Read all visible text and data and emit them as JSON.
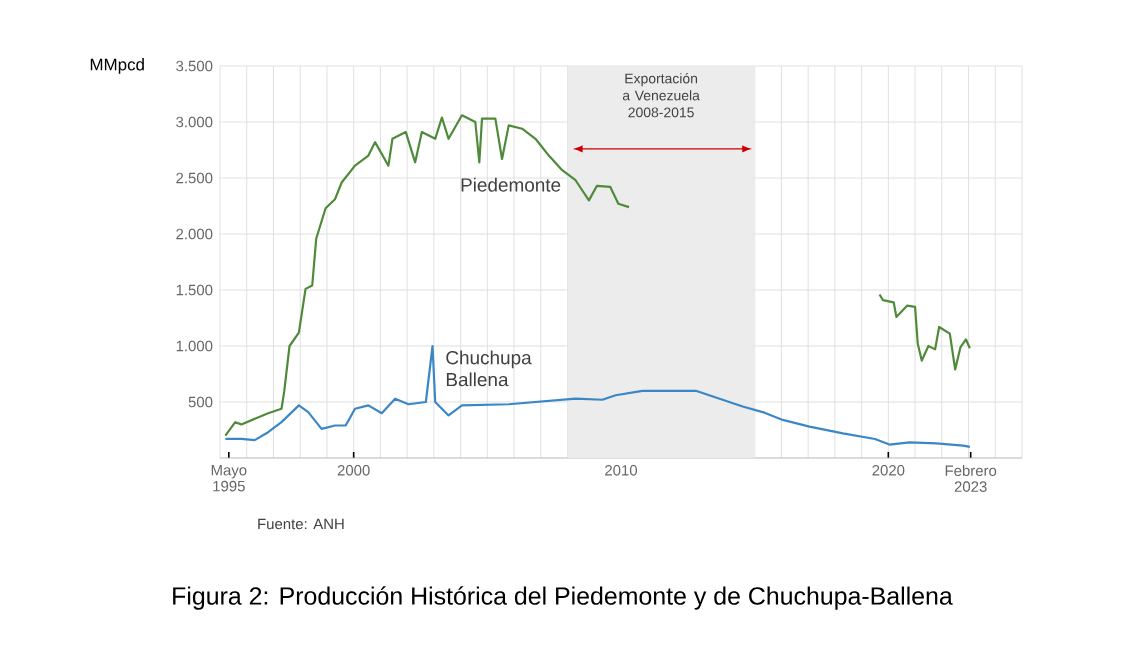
{
  "chart_data": {
    "type": "line",
    "title": "Figura 2: Producción Histórica del Piedemonte y de Chuchupa-Ballena",
    "ylabel": "MMpcd",
    "annotations": [
      "Fuente: ANH"
    ],
    "xlim": [
      1995,
      2025
    ],
    "ylim": [
      0,
      3500
    ],
    "xticks": [
      {
        "value": 1995.33,
        "label": "Mayo 1995"
      },
      2000,
      2010,
      2020,
      {
        "value": 2023.08,
        "label": "Febrero 2023"
      }
    ],
    "yticks": [
      500,
      {
        "value": 1000,
        "label": "1.000"
      },
      {
        "value": 1500,
        "label": "1.500"
      },
      {
        "value": 2000,
        "label": "2.000"
      },
      {
        "value": 2500,
        "label": "2.500"
      },
      {
        "value": 3000,
        "label": "3.000"
      },
      {
        "value": 3500,
        "label": "3.500"
      }
    ],
    "grid": true,
    "legend": false,
    "bands": [
      {
        "axis": "x",
        "from": 2008,
        "to": 2015,
        "label": "Exportación a Venezuela 2008-2015",
        "color": "#ececec"
      }
    ],
    "series": [
      {
        "name": "Piedemonte",
        "color": "#4f8a3a",
        "x": [
          1995.2,
          1995.57,
          1995.8,
          1996.3,
          1996.8,
          1997.3,
          1997.4,
          1997.6,
          1997.95,
          1998.2,
          1998.45,
          1998.6,
          1998.95,
          1999.3,
          1999.55,
          2000.05,
          2000.55,
          2000.8,
          2001.3,
          2001.45,
          2001.95,
          2002.3,
          2002.55,
          2003.05,
          2003.3,
          2003.55,
          2004.05,
          2004.55,
          2004.7,
          2004.8,
          2005.3,
          2005.55,
          2005.8,
          2006.3,
          2006.8,
          2007.3,
          2007.8,
          2008.3,
          2008.8,
          2009.1,
          2009.6,
          2009.9,
          2010.3,
          2015,
          2019.67,
          2019.8,
          2020.2,
          2020.3,
          2020.7,
          2021.0,
          2021.1,
          2021.25,
          2021.5,
          2021.75,
          2021.9,
          2022.3,
          2022.5,
          2022.7,
          2022.9,
          2023.05
        ],
        "values": [
          200,
          320,
          300,
          350,
          400,
          440,
          590,
          1000,
          1120,
          1510,
          1540,
          1960,
          2230,
          2310,
          2460,
          2610,
          2700,
          2820,
          2610,
          2850,
          2910,
          2640,
          2910,
          2850,
          3040,
          2850,
          3060,
          3000,
          2640,
          3030,
          3030,
          2670,
          2970,
          2940,
          2850,
          2700,
          2570,
          2480,
          2300,
          2430,
          2420,
          2270,
          2240,
          null,
          1460,
          1410,
          1390,
          1260,
          1360,
          1350,
          1020,
          870,
          1000,
          970,
          1170,
          1110,
          790,
          990,
          1060,
          980
        ]
      },
      {
        "name": "Chuchupa Ballena",
        "color": "#3b87c6",
        "x": [
          1995.2,
          1995.8,
          1996.3,
          1996.8,
          1997.3,
          1997.95,
          1998.3,
          1998.8,
          1999.3,
          1999.7,
          2000.05,
          2000.55,
          2001.05,
          2001.55,
          2002.05,
          2002.7,
          2002.95,
          2003.05,
          2003.55,
          2004.05,
          2005.8,
          2008.3,
          2009.3,
          2009.8,
          2010.8,
          2012.8,
          2013.8,
          2014.55,
          2015.3,
          2016.05,
          2017.05,
          2018.3,
          2019.5,
          2020.04,
          2020.8,
          2021.8,
          2022.8,
          2023.05
        ],
        "values": [
          170,
          170,
          160,
          230,
          320,
          470,
          410,
          260,
          290,
          290,
          440,
          470,
          400,
          530,
          480,
          500,
          1000,
          500,
          380,
          470,
          480,
          530,
          520,
          560,
          600,
          600,
          520,
          460,
          410,
          340,
          280,
          220,
          170,
          120,
          140,
          130,
          110,
          100
        ]
      }
    ]
  }
}
